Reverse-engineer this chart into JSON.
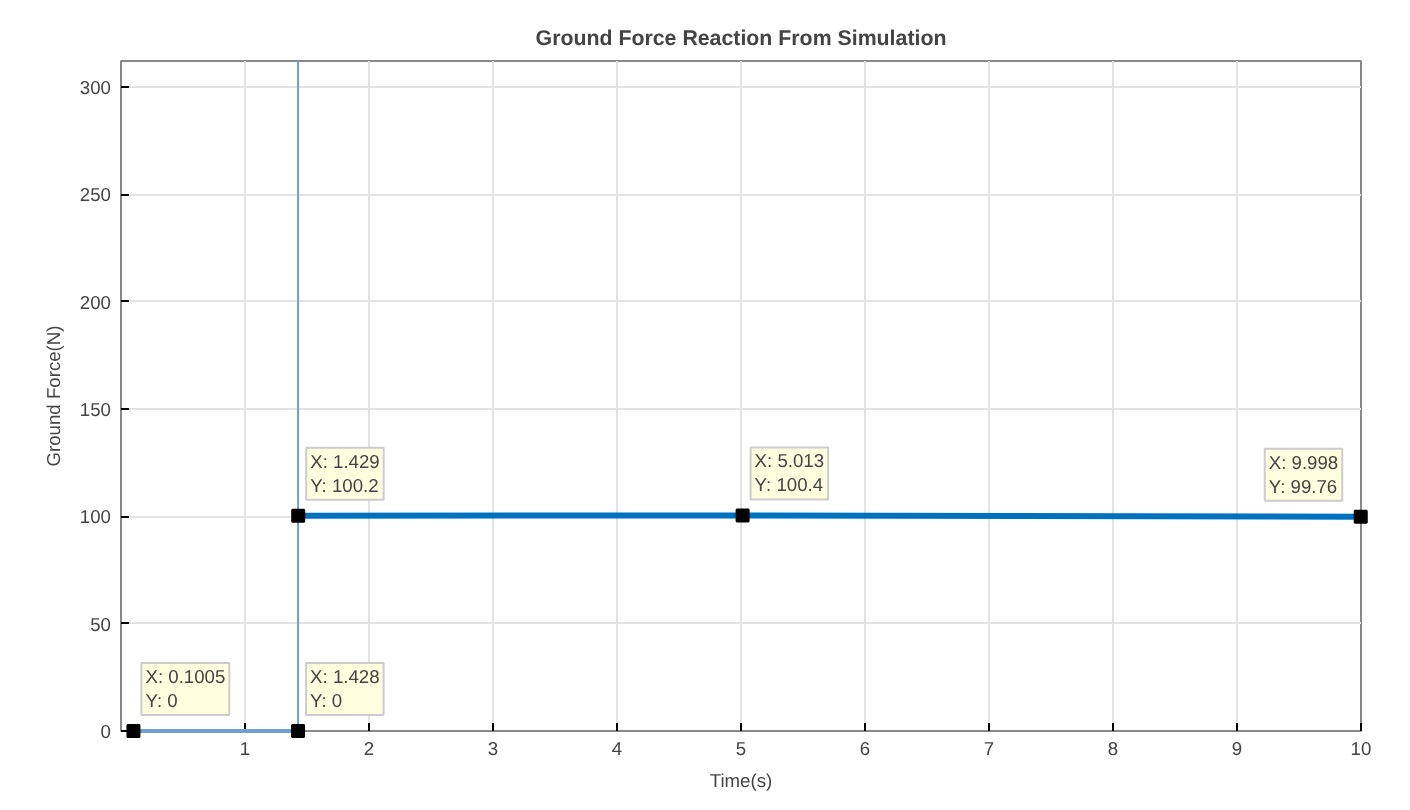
{
  "chart_data": {
    "type": "line",
    "title": "Ground Force Reaction From Simulation",
    "xlabel": "Time(s)",
    "ylabel": "Ground Force(N)",
    "xlim": [
      0,
      10
    ],
    "ylim": [
      0,
      312
    ],
    "xticks": [
      1,
      2,
      3,
      4,
      5,
      6,
      7,
      8,
      9,
      10
    ],
    "yticks": [
      0,
      50,
      100,
      150,
      200,
      250,
      300
    ],
    "grid": true,
    "series": [
      {
        "x": [
          0.1005,
          1.428
        ],
        "values": [
          0,
          0
        ],
        "color": "#6f9fd0"
      },
      {
        "x": [
          1.429,
          5.013,
          9.998
        ],
        "values": [
          100.2,
          100.4,
          99.76
        ],
        "color": "#0072bd"
      },
      {
        "type": "scatter",
        "marker": "square",
        "x": [
          0.1005,
          1.428,
          1.429,
          5.013,
          9.998
        ],
        "values": [
          0,
          0,
          100.2,
          100.4,
          99.76
        ],
        "color": "#000000"
      }
    ],
    "ref_lines": [
      {
        "axis": "x",
        "value": 1.428,
        "color": "#6f9fd0"
      }
    ],
    "annotations": [
      {
        "text": "X: 0.1005\nY: 0",
        "x": 0.1005,
        "y": 0
      },
      {
        "text": "X: 1.428\nY: 0",
        "x": 1.428,
        "y": 0
      },
      {
        "text": "X: 1.429\nY: 100.2",
        "x": 1.429,
        "y": 100.2
      },
      {
        "text": "X: 5.013\nY: 100.4",
        "x": 5.013,
        "y": 100.4
      },
      {
        "text": "X: 9.998\nY: 99.76",
        "x": 9.998,
        "y": 99.76
      }
    ]
  }
}
